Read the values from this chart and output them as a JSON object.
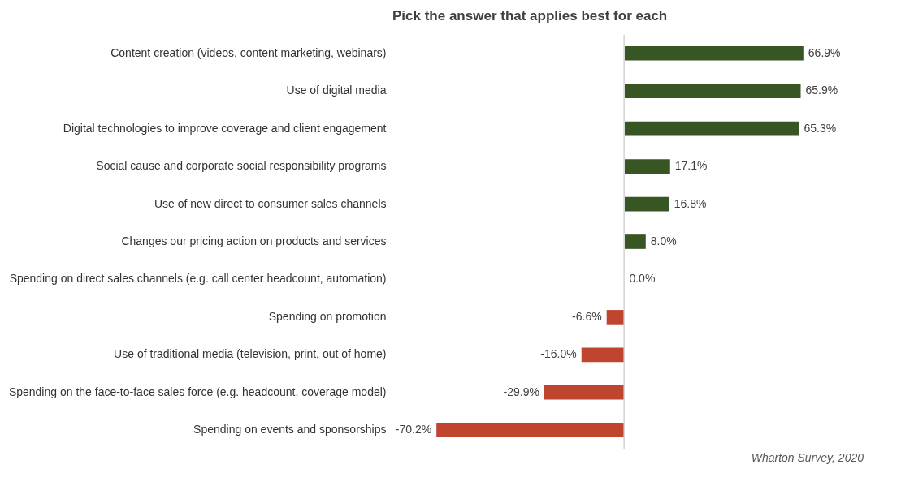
{
  "chart_data": {
    "type": "bar",
    "orientation": "horizontal",
    "title": "Pick the answer that applies best for each",
    "categories": [
      "Content creation (videos, content marketing, webinars)",
      "Use of digital media",
      "Digital technologies to improve coverage and client engagement",
      "Social cause and corporate social responsibility programs",
      "Use of new direct to consumer sales channels",
      "Changes our pricing action on products and services",
      "Spending on direct sales channels (e.g. call center headcount, automation)",
      "Spending on promotion",
      "Use of traditional media (television, print, out of home)",
      "Spending on the face-to-face sales force (e.g. headcount, coverage model)",
      "Spending on events and sponsorships"
    ],
    "values": [
      66.9,
      65.9,
      65.3,
      17.1,
      16.8,
      8.0,
      0.0,
      -6.6,
      -16.0,
      -29.9,
      -70.2
    ],
    "value_labels": [
      "66.9%",
      "65.9%",
      "65.3%",
      "17.1%",
      "16.8%",
      "8.0%",
      "0.0%",
      "-6.6%",
      "-16.0%",
      "-29.9%",
      "-70.2%"
    ],
    "colors": [
      "#375623",
      "#375623",
      "#375623",
      "#375623",
      "#375623",
      "#375623",
      "#375623",
      "#c0452f",
      "#c0452f",
      "#c0452f",
      "#c0452f"
    ],
    "annotations": [
      "Wharton Survey, 2020"
    ],
    "grid": false
  }
}
